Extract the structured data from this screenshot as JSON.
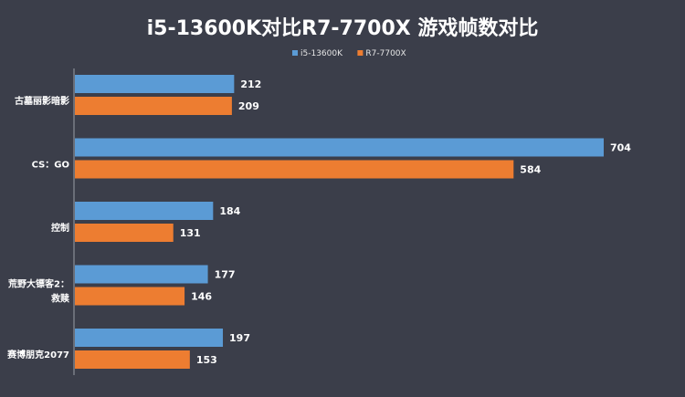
{
  "chart_data": {
    "type": "bar",
    "orientation": "horizontal",
    "title": "i5-13600K对比R7-7700X 游戏帧数对比",
    "categories": [
      [
        "古墓丽影暗影"
      ],
      [
        "CS：GO"
      ],
      [
        "控制"
      ],
      [
        "荒野大镖客2：",
        "救赎"
      ],
      [
        "赛博朋克2077"
      ]
    ],
    "series": [
      {
        "name": "i5-13600K",
        "color": "#5b9bd5",
        "values": [
          212,
          704,
          184,
          177,
          197
        ]
      },
      {
        "name": "R7-7700X",
        "color": "#ed7d31",
        "values": [
          209,
          584,
          131,
          146,
          153
        ]
      }
    ],
    "xlim": [
      0,
      704
    ],
    "grid": false,
    "legend_position": "top-center",
    "data_labels": true,
    "background": "#3b3e4a"
  }
}
